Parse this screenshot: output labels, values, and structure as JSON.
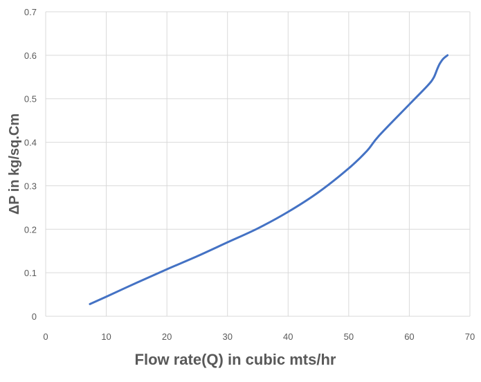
{
  "chart_data": {
    "type": "line",
    "title": "",
    "xlabel": "Flow rate(Q) in cubic mts/hr",
    "ylabel": "ΔP in kg/sq.Cm",
    "xlim": [
      0,
      70
    ],
    "ylim": [
      0,
      0.7
    ],
    "x_ticks": [
      "0",
      "10",
      "20",
      "30",
      "40",
      "50",
      "60",
      "70"
    ],
    "y_ticks": [
      "0",
      "0.1",
      "0.2",
      "0.3",
      "0.4",
      "0.5",
      "0.6",
      "0.7"
    ],
    "grid": true,
    "legend": "none",
    "series": [
      {
        "color": "#4472C4",
        "x": [
          7.3,
          10,
          15,
          20,
          25,
          30,
          35,
          40,
          45,
          50,
          53,
          55,
          60,
          63,
          64,
          64.6,
          65,
          65.6,
          66.3
        ],
        "y": [
          0.028,
          0.045,
          0.077,
          0.108,
          0.138,
          0.17,
          0.202,
          0.24,
          0.285,
          0.34,
          0.38,
          0.415,
          0.487,
          0.53,
          0.548,
          0.568,
          0.58,
          0.592,
          0.6
        ]
      }
    ]
  }
}
